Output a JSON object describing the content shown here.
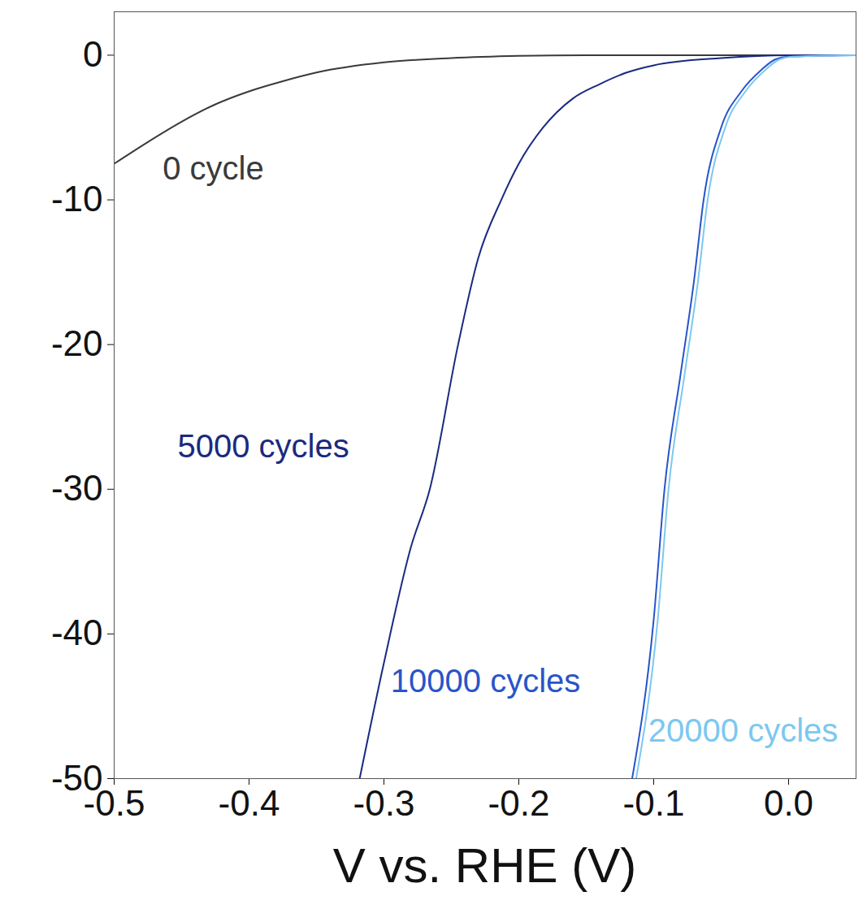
{
  "chart_data": {
    "type": "line",
    "x_label": "V vs. RHE (V)",
    "xlim": [
      -0.5,
      0.05
    ],
    "xticks": [
      -0.5,
      -0.4,
      -0.3,
      -0.2,
      -0.1,
      {
        "value": 0,
        "label": "0.0"
      }
    ],
    "ylim": [
      -50,
      3
    ],
    "yticks": [
      0,
      -10,
      -20,
      -30,
      -40,
      -50
    ],
    "grid": false,
    "series": [
      {
        "name": "0 cycle",
        "color": "#3a3a3a",
        "label_x": -0.464,
        "label_y": -7.9,
        "x": [
          -0.5,
          -0.475,
          -0.45,
          -0.425,
          -0.4,
          -0.375,
          -0.35,
          -0.3,
          -0.25,
          -0.2,
          -0.15,
          -0.1,
          0,
          0.05
        ],
        "values": [
          -7.5,
          -6.0,
          -4.6,
          -3.4,
          -2.5,
          -1.8,
          -1.2,
          -0.5,
          -0.2,
          -0.05,
          0,
          0,
          0,
          0
        ]
      },
      {
        "name": "5000 cycles",
        "color": "#1a2a80",
        "label_x": -0.453,
        "label_y": -27.1,
        "x": [
          -0.318,
          -0.3,
          -0.28,
          -0.266,
          -0.245,
          -0.23,
          -0.213,
          -0.2,
          -0.182,
          -0.16,
          -0.14,
          -0.12,
          -0.1,
          -0.05,
          0,
          0.05
        ],
        "values": [
          -50,
          -42,
          -34,
          -30,
          -20,
          -14,
          -10,
          -7.5,
          -5,
          -3,
          -2,
          -1.2,
          -0.7,
          -0.2,
          0,
          0
        ]
      },
      {
        "name": "10000 cycles",
        "color": "#2855c8",
        "label_x": -0.295,
        "label_y": -43.3,
        "x": [
          -0.116,
          -0.1,
          -0.092,
          -0.08,
          -0.07,
          -0.063,
          -0.05,
          -0.035,
          -0.02,
          -0.01,
          0,
          0.05
        ],
        "values": [
          -50,
          -39,
          -30,
          -22,
          -15.5,
          -10,
          -5,
          -2.5,
          -1,
          -0.3,
          -0.1,
          0
        ]
      },
      {
        "name": "20000 cycles",
        "color": "#7cc8f0",
        "label_x": -0.104,
        "label_y": -46.7,
        "x": [
          -0.113,
          -0.097,
          -0.089,
          -0.077,
          -0.067,
          -0.06,
          -0.047,
          -0.032,
          -0.017,
          -0.007,
          0.003,
          0.05
        ],
        "values": [
          -50,
          -39,
          -30,
          -22,
          -15.5,
          -10,
          -5,
          -2.5,
          -1,
          -0.3,
          -0.1,
          0
        ]
      }
    ]
  }
}
